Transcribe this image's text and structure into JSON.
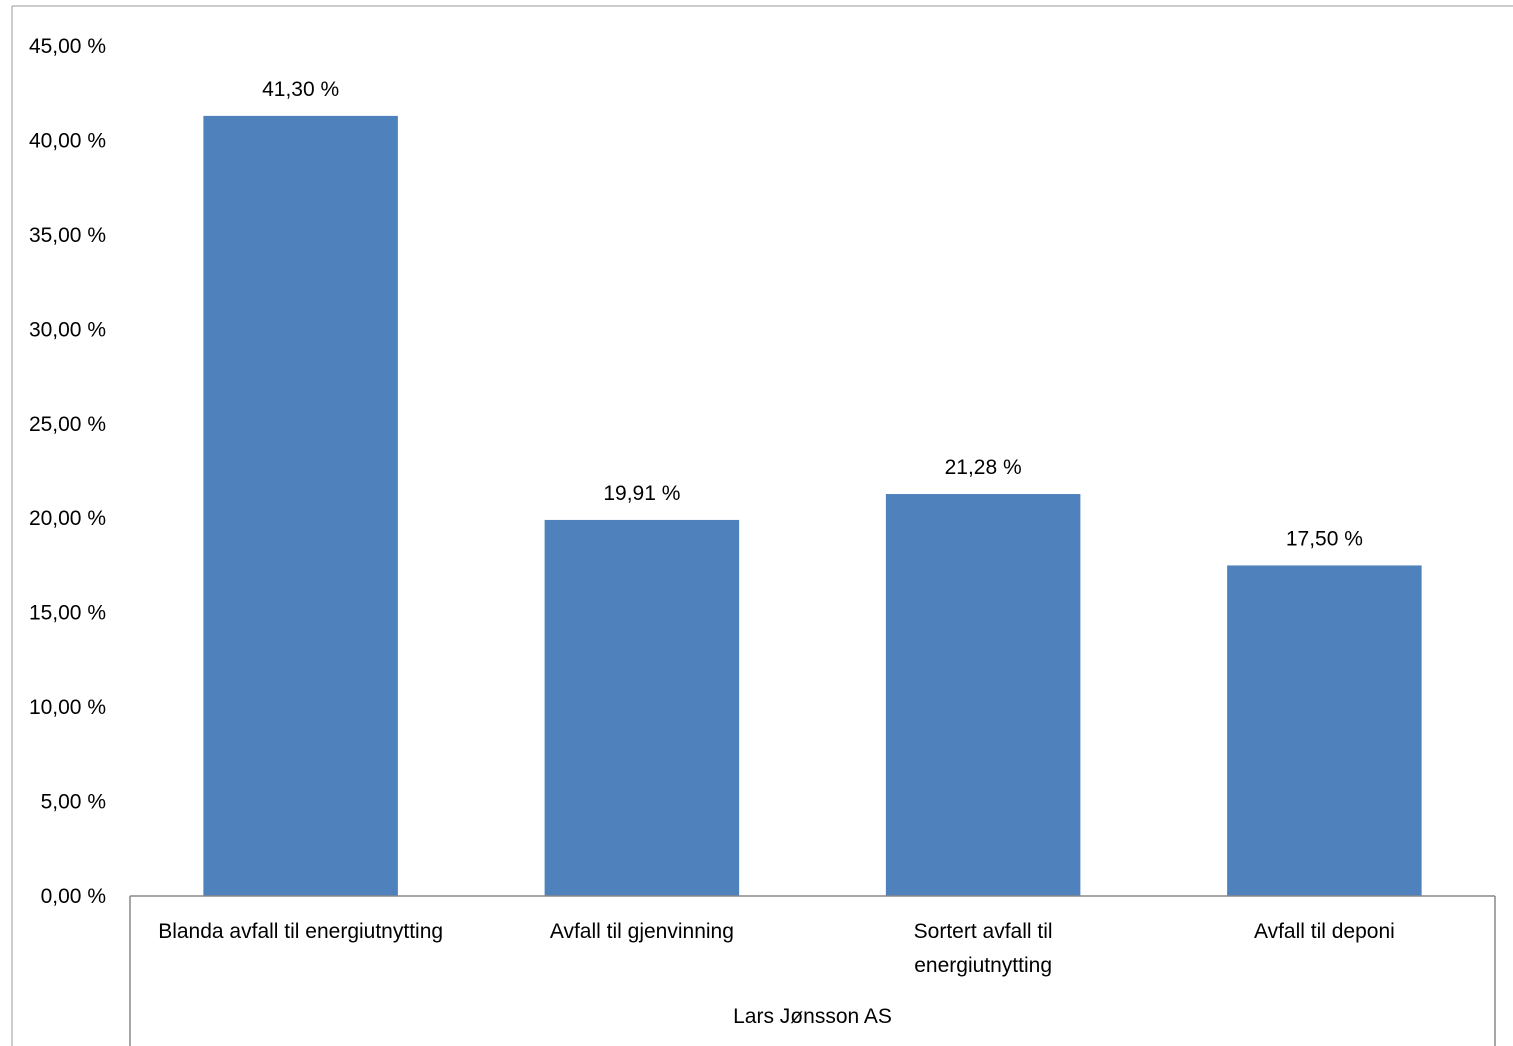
{
  "chart_data": {
    "type": "bar",
    "title": "",
    "xlabel": "",
    "ylabel": "",
    "categories": [
      "Blanda avfall til energiutnytting",
      "Avfall til gjenvinning",
      "Sortert avfall til energiutnytting",
      "Avfall til deponi"
    ],
    "category_lines": [
      [
        "Blanda avfall til energiutnytting"
      ],
      [
        "Avfall til gjenvinning"
      ],
      [
        "Sortert avfall til",
        "energiutnytting"
      ],
      [
        "Avfall til deponi"
      ]
    ],
    "group_label": "Lars Jønsson AS",
    "values": [
      41.3,
      19.91,
      21.28,
      17.5
    ],
    "value_labels": [
      "41,30 %",
      "19,91 %",
      "21,28 %",
      "17,50 %"
    ],
    "ylim": [
      0,
      45
    ],
    "yticks": [
      0,
      5,
      10,
      15,
      20,
      25,
      30,
      35,
      40,
      45
    ],
    "ytick_labels": [
      "0,00 %",
      "5,00 %",
      "10,00 %",
      "15,00 %",
      "20,00 %",
      "25,00 %",
      "30,00 %",
      "35,00 %",
      "40,00 %",
      "45,00 %"
    ],
    "grid": false,
    "legend": "none",
    "bar_color": "#4F81BD"
  }
}
